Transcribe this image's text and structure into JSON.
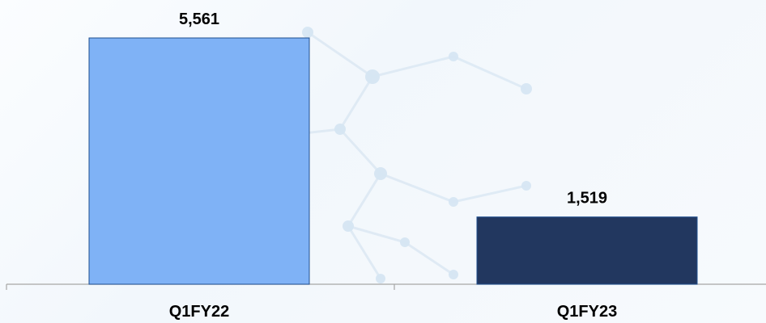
{
  "chart_data": {
    "type": "bar",
    "categories": [
      "Q1FY22",
      "Q1FY23"
    ],
    "values": [
      5561,
      1519
    ],
    "data_labels": [
      "5,561",
      "1,519"
    ],
    "colors": [
      "#7fb2f6",
      "#22375f"
    ],
    "edge_color": "#1f4f8f",
    "axis_color": "#a6a6a6",
    "title": "",
    "xlabel": "",
    "ylabel": "",
    "ylim": [
      0,
      5561
    ],
    "grid": false,
    "legend": "none"
  }
}
